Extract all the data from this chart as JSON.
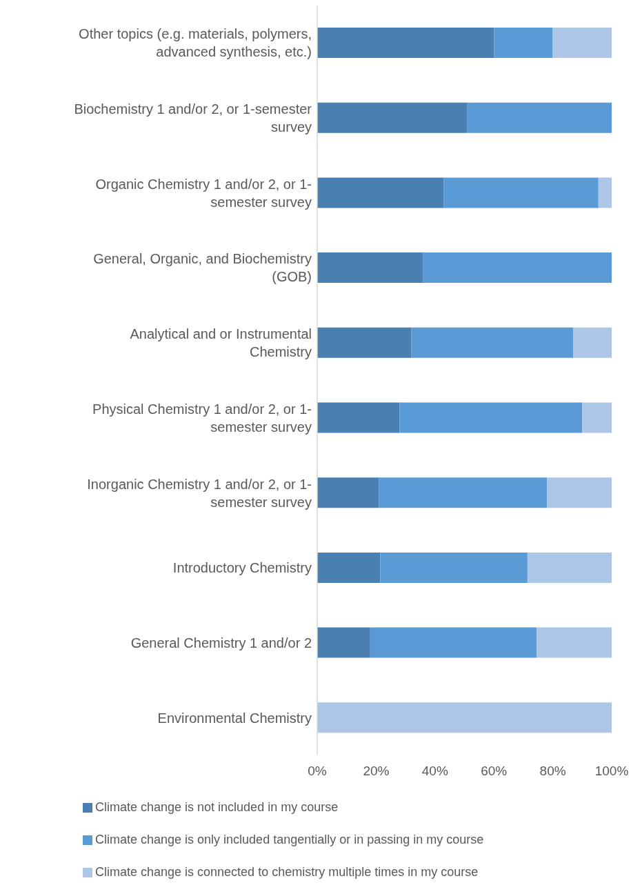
{
  "chart_data": {
    "type": "bar",
    "orientation": "horizontal",
    "stacked": true,
    "categories": [
      "Other topics (e.g. materials, polymers, advanced synthesis, etc.)",
      "Biochemistry 1 and/or 2, or 1-semester survey",
      "Organic Chemistry 1 and/or 2, or 1-semester survey",
      "General, Organic, and Biochemistry (GOB)",
      "Analytical and or Instrumental Chemistry",
      "Physical Chemistry 1 and/or 2, or 1-semester survey",
      "Inorganic Chemistry 1 and/or 2, or 1-semester survey",
      "Introductory Chemistry",
      "General Chemistry 1 and/or 2",
      "Environmental Chemistry"
    ],
    "series": [
      {
        "name": "Climate change is not included in my course",
        "color": "#4a7fb1",
        "values": [
          60,
          51,
          43,
          36,
          32,
          28,
          21,
          21.4,
          18,
          0
        ]
      },
      {
        "name": "Climate change is only included tangentially or in passing in my course",
        "color": "#5b9bd5",
        "values": [
          20,
          49,
          52.5,
          64,
          55,
          62,
          57,
          50,
          56.5,
          0
        ]
      },
      {
        "name": "Climate change is connected to chemistry multiple times in my course",
        "color": "#adc5e7",
        "values": [
          20,
          0,
          4.5,
          0,
          13,
          10,
          22,
          28.6,
          25.5,
          100
        ]
      }
    ],
    "xlim": [
      0,
      100
    ],
    "xticks": [
      {
        "value": 0,
        "label": "0%"
      },
      {
        "value": 20,
        "label": "20%"
      },
      {
        "value": 40,
        "label": "40%"
      },
      {
        "value": 60,
        "label": "60%"
      },
      {
        "value": 80,
        "label": "80%"
      },
      {
        "value": 100,
        "label": "100%"
      }
    ],
    "grid": false,
    "legend": "bottom"
  }
}
